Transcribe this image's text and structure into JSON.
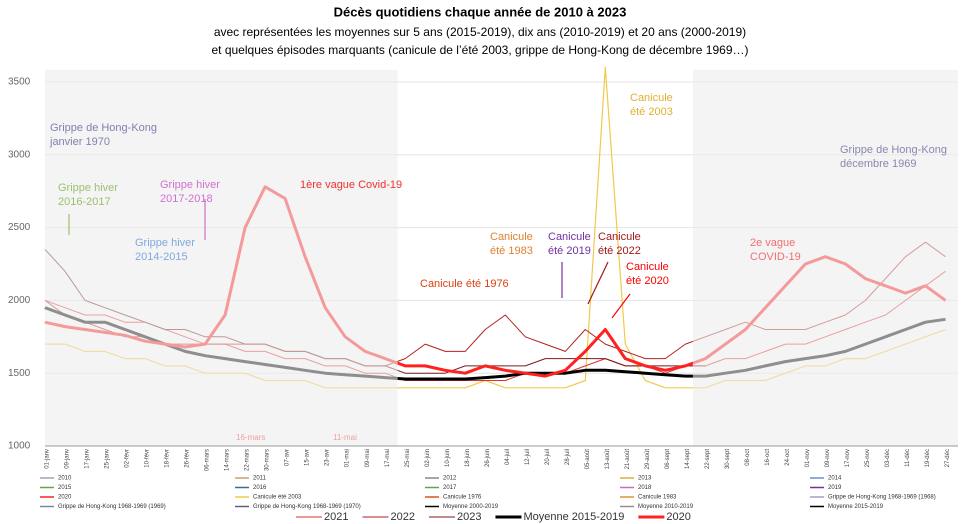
{
  "chart_data": {
    "type": "line",
    "title": "Décès quotidiens chaque année de 2010 à 2023",
    "subtitle": [
      "avec représentées les moyennes sur 5 ans (2015-2019), dix ans (2010-2019) et 20 ans (2000-2019)",
      "et quelques épisodes marquants (canicule de l’été 2003, grippe de Hong-Kong de décembre 1969…)"
    ],
    "categories": [
      "01-janv",
      "09-janv",
      "17-janv",
      "25-janv",
      "02-févr",
      "10-févr",
      "18-févr",
      "26-févr",
      "06-mars",
      "14-mars",
      "22-mars",
      "30-mars",
      "07-avr",
      "15-avr",
      "23-avr",
      "01-mai",
      "09-mai",
      "17-mai",
      "25-mai",
      "02-juin",
      "10-juin",
      "18-juin",
      "26-juin",
      "04-juil",
      "12-juil",
      "20-juil",
      "28-juil",
      "05-août",
      "13-août",
      "21-août",
      "29-août",
      "06-sept",
      "14-sept",
      "22-sept",
      "30-sept",
      "08-oct",
      "16-oct",
      "24-oct",
      "01-nov",
      "09-nov",
      "17-nov",
      "25-nov",
      "03-déc",
      "11-déc",
      "19-déc",
      "27-déc"
    ],
    "series": [
      {
        "name": "Canicule été 2003",
        "color": "#f2c94c",
        "width": 1.2,
        "in_legend": false,
        "values": [
          1700,
          1700,
          1650,
          1650,
          1600,
          1600,
          1550,
          1550,
          1500,
          1500,
          1500,
          1450,
          1450,
          1450,
          1400,
          1400,
          1400,
          1400,
          1400,
          1400,
          1400,
          1400,
          1450,
          1400,
          1400,
          1400,
          1400,
          1450,
          3600,
          1700,
          1450,
          1400,
          1400,
          1400,
          1450,
          1450,
          1450,
          1500,
          1550,
          1550,
          1600,
          1600,
          1650,
          1700,
          1750,
          1800
        ]
      },
      {
        "name": "2021",
        "color": "#e03030",
        "width": 1,
        "in_legend": true,
        "values": [
          2000,
          1950,
          1900,
          1900,
          1850,
          1850,
          1800,
          1750,
          1700,
          1700,
          1650,
          1650,
          1600,
          1600,
          1550,
          1550,
          1500,
          1500,
          1450,
          1450,
          1450,
          1450,
          1450,
          1450,
          1500,
          1500,
          1500,
          1550,
          1600,
          1550,
          1550,
          1500,
          1550,
          1550,
          1600,
          1600,
          1650,
          1700,
          1700,
          1750,
          1800,
          1850,
          1900,
          2000,
          2100,
          2200
        ]
      },
      {
        "name": "2022",
        "color": "#b22222",
        "width": 1,
        "in_legend": true,
        "values": [
          2000,
          1900,
          1850,
          1800,
          1750,
          1750,
          1700,
          1700,
          1700,
          1700,
          1700,
          1700,
          1650,
          1650,
          1600,
          1600,
          1550,
          1550,
          1600,
          1700,
          1650,
          1650,
          1800,
          1900,
          1750,
          1700,
          1650,
          1800,
          1700,
          1650,
          1600,
          1600,
          1700,
          1750,
          1800,
          1850,
          1800,
          1800,
          1800,
          1850,
          1900,
          2000,
          2150,
          2300,
          2400,
          2300
        ]
      },
      {
        "name": "2023",
        "color": "#7b1a1a",
        "width": 1,
        "in_legend": true,
        "values": [
          2350,
          2200,
          2000,
          1950,
          1900,
          1850,
          1800,
          1800,
          1750,
          1750,
          1700,
          1700,
          1650,
          1650,
          1600,
          1600,
          1550,
          1550,
          1500,
          1500,
          1500,
          1550,
          1550,
          1550,
          1550,
          1600,
          1600,
          1600,
          1600,
          1550,
          1550,
          1550,
          1550,
          1550,
          null,
          null,
          null,
          null,
          null,
          null,
          null,
          null,
          null,
          null,
          null,
          null
        ]
      },
      {
        "name": "Moyenne 2015-2019",
        "color": "#000000",
        "width": 3,
        "in_legend": true,
        "values": [
          1950,
          1900,
          1850,
          1850,
          1800,
          1750,
          1700,
          1650,
          1620,
          1600,
          1580,
          1560,
          1540,
          1520,
          1500,
          1490,
          1480,
          1470,
          1460,
          1460,
          1460,
          1460,
          1470,
          1480,
          1500,
          1500,
          1500,
          1520,
          1520,
          1510,
          1500,
          1490,
          1480,
          1480,
          1500,
          1520,
          1550,
          1580,
          1600,
          1620,
          1650,
          1700,
          1750,
          1800,
          1850,
          1870
        ]
      },
      {
        "name": "2020",
        "color": "#ff2020",
        "width": 3,
        "in_legend": true,
        "values": [
          1850,
          1820,
          1800,
          1780,
          1760,
          1720,
          1700,
          1680,
          1700,
          1900,
          2500,
          2780,
          2700,
          2300,
          1950,
          1750,
          1650,
          1600,
          1550,
          1550,
          1520,
          1500,
          1550,
          1520,
          1500,
          1480,
          1520,
          1650,
          1800,
          1600,
          1550,
          1520,
          1550,
          1600,
          1700,
          1800,
          1950,
          2100,
          2250,
          2300,
          2250,
          2150,
          2100,
          2050,
          2100,
          2000
        ]
      }
    ],
    "ylim": [
      1000,
      3500
    ],
    "yticks": [
      1000,
      1500,
      2000,
      2500,
      3000,
      3500
    ],
    "grid": true,
    "legend_entries": [
      {
        "name": "2010",
        "color": "#9aa4b8"
      },
      {
        "name": "2011",
        "color": "#c8a070"
      },
      {
        "name": "2012",
        "color": "#888888"
      },
      {
        "name": "2013",
        "color": "#d8b040"
      },
      {
        "name": "2014",
        "color": "#6c8cd0"
      },
      {
        "name": "2015",
        "color": "#70a040"
      },
      {
        "name": "2016",
        "color": "#406890"
      },
      {
        "name": "2017",
        "color": "#60a840"
      },
      {
        "name": "2018",
        "color": "#c070c0"
      },
      {
        "name": "2019",
        "color": "#7030a0"
      },
      {
        "name": "2020",
        "color": "#ff2020"
      },
      {
        "name": "Canicule été 2003",
        "color": "#f2c94c"
      },
      {
        "name": "Canicule 1976",
        "color": "#e05020"
      },
      {
        "name": "Canicule 1983",
        "color": "#e09030"
      },
      {
        "name": "Grippe de Hong-Kong 1968-1969 (1968)",
        "color": "#a0a0c0"
      },
      {
        "name": "Grippe de Hong-Kong 1968-1969 (1969)",
        "color": "#8080a0"
      },
      {
        "name": "Grippe de Hong-Kong 1968-1969 (1970)",
        "color": "#606080"
      },
      {
        "name": "Moyenne 2000-2019",
        "color": "#000000"
      },
      {
        "name": "Moyenne 2010-2019",
        "color": "#909090"
      },
      {
        "name": "Moyenne 2015-2019",
        "color": "#000000"
      }
    ],
    "annotations": [
      {
        "lines": [
          "Grippe de Hong-Kong",
          "janvier 1970"
        ],
        "color": "#8080b0"
      },
      {
        "lines": [
          "Grippe hiver",
          "2016-2017"
        ],
        "color": "#9cc070"
      },
      {
        "lines": [
          "Grippe hiver",
          "2017-2018"
        ],
        "color": "#d070d0"
      },
      {
        "lines": [
          "Grippe hiver",
          "2014-2015"
        ],
        "color": "#80a8e0"
      },
      {
        "lines": [
          "1ère vague Covid-19"
        ],
        "color": "#f03030"
      },
      {
        "lines": [
          "Canicule",
          "été 2003"
        ],
        "color": "#e0b030"
      },
      {
        "lines": [
          "Grippe de Hong-Kong",
          "décembre 1969"
        ],
        "color": "#8888b0"
      },
      {
        "lines": [
          "Canicule",
          "été 1983"
        ],
        "color": "#e08030"
      },
      {
        "lines": [
          "Canicule",
          "été 2019"
        ],
        "color": "#7030a0"
      },
      {
        "lines": [
          "Canicule",
          "été 2022"
        ],
        "color": "#a01818"
      },
      {
        "lines": [
          "Canicule",
          "été 2020"
        ],
        "color": "#ff0000"
      },
      {
        "lines": [
          "Canicule été 1976"
        ],
        "color": "#e04010"
      },
      {
        "lines": [
          "2e vague",
          "COVID-19"
        ],
        "color": "#f07070"
      },
      {
        "lines": [
          "16-mars"
        ],
        "color": "#f0a0a0"
      },
      {
        "lines": [
          "11-mai"
        ],
        "color": "#f0a0a0"
      }
    ]
  }
}
